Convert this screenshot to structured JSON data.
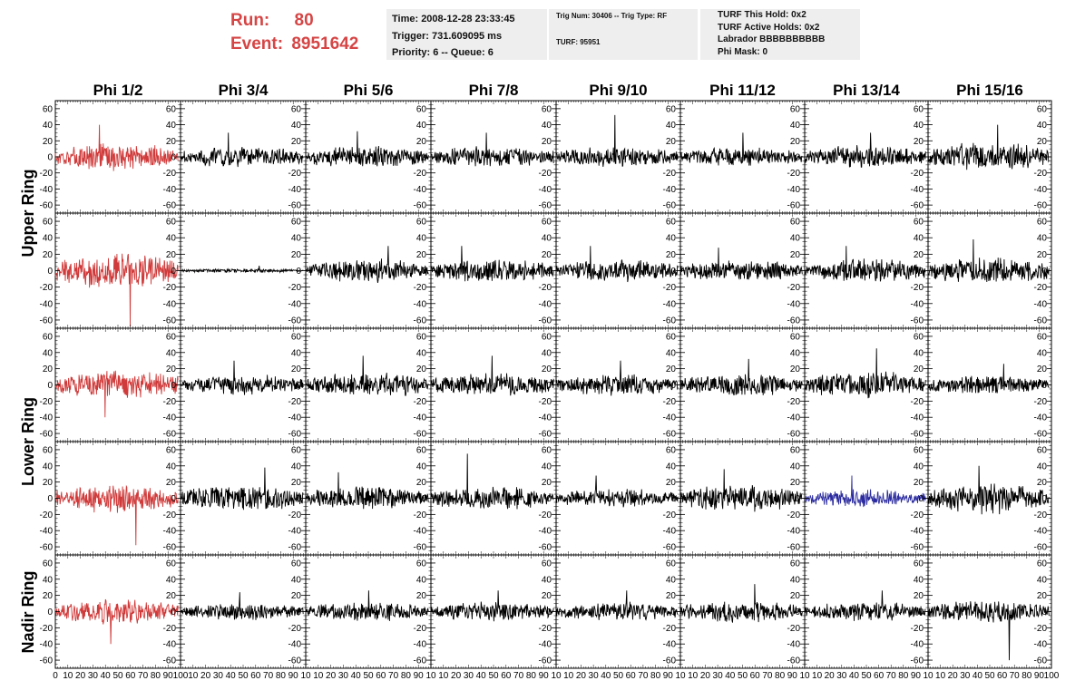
{
  "run_label": "Run:",
  "run_value": "80",
  "event_label": "Event:",
  "event_value": "8951642",
  "info_time": {
    "time": "Time: 2008-12-28 23:33:45",
    "trigger": "Trigger: 731.609095 ms",
    "priority": "Priority: 6 -- Queue: 6"
  },
  "info_trig": {
    "trig": "Trig Num: 30406 -- Trig Type: RF",
    "turf": "TURF: 95951"
  },
  "info_turf": {
    "hold": "TURF This Hold: 0x2",
    "active": "TURF Active Holds: 0x2",
    "labrador": "Labrador BBBBBBBBBB",
    "phimask": "Phi Mask: 0"
  },
  "colors": {
    "red": "#d03a3a",
    "blue": "#2c2ca0",
    "black": "#000000",
    "title_red": "#d64545"
  },
  "chart_data": {
    "type": "line",
    "columns": [
      "Phi 1/2",
      "Phi 3/4",
      "Phi 5/6",
      "Phi 7/8",
      "Phi 9/10",
      "Phi 11/12",
      "Phi 13/14",
      "Phi 15/16"
    ],
    "ring_labels": [
      "Upper Ring",
      "Lower Ring",
      "Nadir Ring"
    ],
    "ylim": [
      -70,
      70
    ],
    "y_ticks": [
      -60,
      -40,
      -20,
      0,
      20,
      40,
      60
    ],
    "xlim": [
      0,
      100
    ],
    "x_ticks_first": [
      "0",
      "10",
      "20",
      "30",
      "40",
      "50",
      "60",
      "70",
      "80",
      "90",
      "100"
    ],
    "x_ticks": [
      "10",
      "20",
      "30",
      "40",
      "50",
      "60",
      "70",
      "80",
      "90",
      "10"
    ],
    "x_ticks_last": [
      "10",
      "20",
      "30",
      "40",
      "50",
      "60",
      "70",
      "80",
      "90",
      "100"
    ],
    "panels": [
      {
        "row": 0,
        "col": 0,
        "color": "red",
        "amplitude": 14,
        "spike": 40
      },
      {
        "row": 0,
        "col": 1,
        "color": "black",
        "amplitude": 11,
        "spike": 30
      },
      {
        "row": 0,
        "col": 2,
        "color": "black",
        "amplitude": 12,
        "spike": 32
      },
      {
        "row": 0,
        "col": 3,
        "color": "black",
        "amplitude": 11,
        "spike": 30
      },
      {
        "row": 0,
        "col": 4,
        "color": "black",
        "amplitude": 11,
        "spike": 52
      },
      {
        "row": 0,
        "col": 5,
        "color": "black",
        "amplitude": 10,
        "spike": 30
      },
      {
        "row": 0,
        "col": 6,
        "color": "black",
        "amplitude": 12,
        "spike": 30
      },
      {
        "row": 0,
        "col": 7,
        "color": "black",
        "amplitude": 15,
        "spike": 40
      },
      {
        "row": 1,
        "col": 0,
        "color": "red",
        "amplitude": 18,
        "spike": -68
      },
      {
        "row": 1,
        "col": 1,
        "color": "black",
        "amplitude": 2,
        "spike": 6
      },
      {
        "row": 1,
        "col": 2,
        "color": "black",
        "amplitude": 12,
        "spike": 30
      },
      {
        "row": 1,
        "col": 3,
        "color": "black",
        "amplitude": 12,
        "spike": 30
      },
      {
        "row": 1,
        "col": 4,
        "color": "black",
        "amplitude": 12,
        "spike": 30
      },
      {
        "row": 1,
        "col": 5,
        "color": "black",
        "amplitude": 11,
        "spike": 28
      },
      {
        "row": 1,
        "col": 6,
        "color": "black",
        "amplitude": 12,
        "spike": 30
      },
      {
        "row": 1,
        "col": 7,
        "color": "black",
        "amplitude": 14,
        "spike": 38
      },
      {
        "row": 2,
        "col": 0,
        "color": "red",
        "amplitude": 16,
        "spike": -40
      },
      {
        "row": 2,
        "col": 1,
        "color": "black",
        "amplitude": 11,
        "spike": 30
      },
      {
        "row": 2,
        "col": 2,
        "color": "black",
        "amplitude": 13,
        "spike": 36
      },
      {
        "row": 2,
        "col": 3,
        "color": "black",
        "amplitude": 13,
        "spike": 36
      },
      {
        "row": 2,
        "col": 4,
        "color": "black",
        "amplitude": 11,
        "spike": 30
      },
      {
        "row": 2,
        "col": 5,
        "color": "black",
        "amplitude": 12,
        "spike": 32
      },
      {
        "row": 2,
        "col": 6,
        "color": "black",
        "amplitude": 14,
        "spike": 45
      },
      {
        "row": 2,
        "col": 7,
        "color": "black",
        "amplitude": 10,
        "spike": 26
      },
      {
        "row": 3,
        "col": 0,
        "color": "red",
        "amplitude": 15,
        "spike": -58
      },
      {
        "row": 3,
        "col": 1,
        "color": "black",
        "amplitude": 14,
        "spike": 38
      },
      {
        "row": 3,
        "col": 2,
        "color": "black",
        "amplitude": 12,
        "spike": 32
      },
      {
        "row": 3,
        "col": 3,
        "color": "black",
        "amplitude": 12,
        "spike": 55
      },
      {
        "row": 3,
        "col": 4,
        "color": "black",
        "amplitude": 10,
        "spike": 28
      },
      {
        "row": 3,
        "col": 5,
        "color": "black",
        "amplitude": 14,
        "spike": 36
      },
      {
        "row": 3,
        "col": 6,
        "color": "blue",
        "amplitude": 10,
        "spike": 28
      },
      {
        "row": 3,
        "col": 7,
        "color": "black",
        "amplitude": 16,
        "spike": 40
      },
      {
        "row": 4,
        "col": 0,
        "color": "red",
        "amplitude": 13,
        "spike": -40
      },
      {
        "row": 4,
        "col": 1,
        "color": "black",
        "amplitude": 9,
        "spike": 24
      },
      {
        "row": 4,
        "col": 2,
        "color": "black",
        "amplitude": 10,
        "spike": 26
      },
      {
        "row": 4,
        "col": 3,
        "color": "black",
        "amplitude": 10,
        "spike": 26
      },
      {
        "row": 4,
        "col": 4,
        "color": "black",
        "amplitude": 10,
        "spike": 26
      },
      {
        "row": 4,
        "col": 5,
        "color": "black",
        "amplitude": 11,
        "spike": 34
      },
      {
        "row": 4,
        "col": 6,
        "color": "black",
        "amplitude": 10,
        "spike": 26
      },
      {
        "row": 4,
        "col": 7,
        "color": "black",
        "amplitude": 12,
        "spike": -60
      }
    ]
  }
}
